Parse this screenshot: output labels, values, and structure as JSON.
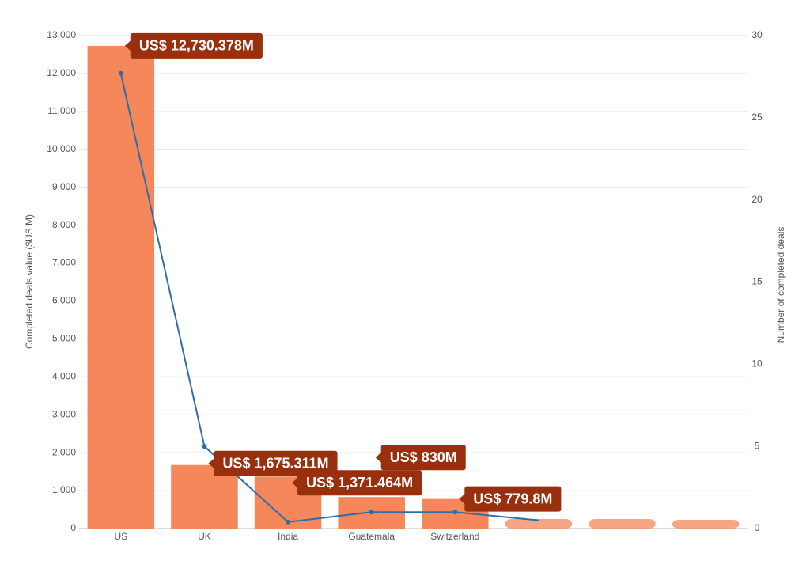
{
  "chart_data": {
    "type": "bar-line",
    "categories": [
      "US",
      "UK",
      "India",
      "Guatemala",
      "Switzerland",
      null,
      null,
      null
    ],
    "series": [
      {
        "type": "bar",
        "color": "#f5875a",
        "values": [
          12730.378,
          1675.311,
          1371.464,
          830,
          779.8,
          250,
          250,
          230
        ],
        "value_labels": [
          "US$ 12,730.378M",
          "US$ 1,675.311M",
          "US$ 1,371.464M",
          "US$ 830M",
          "US$ 779.8M",
          null,
          null,
          null
        ]
      },
      {
        "type": "line",
        "axis": "y2",
        "color": "#2f6ea5",
        "values": [
          27.7,
          5,
          0.4,
          1,
          1,
          0.5,
          null,
          null
        ]
      }
    ],
    "ylabel": "Completed deals value ($US M)",
    "y2label": "Number of completed deals",
    "ylim": [
      0,
      13000
    ],
    "yticks": [
      0,
      {
        "value": 1000,
        "label": "1,000"
      },
      {
        "value": 2000,
        "label": "2,000"
      },
      {
        "value": 3000,
        "label": "3,000"
      },
      {
        "value": 4000,
        "label": "4,000"
      },
      {
        "value": 5000,
        "label": "5,000"
      },
      {
        "value": 6000,
        "label": "6,000"
      },
      {
        "value": 7000,
        "label": "7,000"
      },
      {
        "value": 8000,
        "label": "8,000"
      },
      {
        "value": 9000,
        "label": "9,000"
      },
      {
        "value": 10000,
        "label": "10,000"
      },
      {
        "value": 11000,
        "label": "11,000"
      },
      {
        "value": 12000,
        "label": "12,000"
      },
      {
        "value": 13000,
        "label": "13,000"
      }
    ],
    "y2lim": [
      0,
      30
    ],
    "y2ticks": [
      0,
      5,
      10,
      15,
      20,
      25,
      30
    ],
    "grid": true
  }
}
